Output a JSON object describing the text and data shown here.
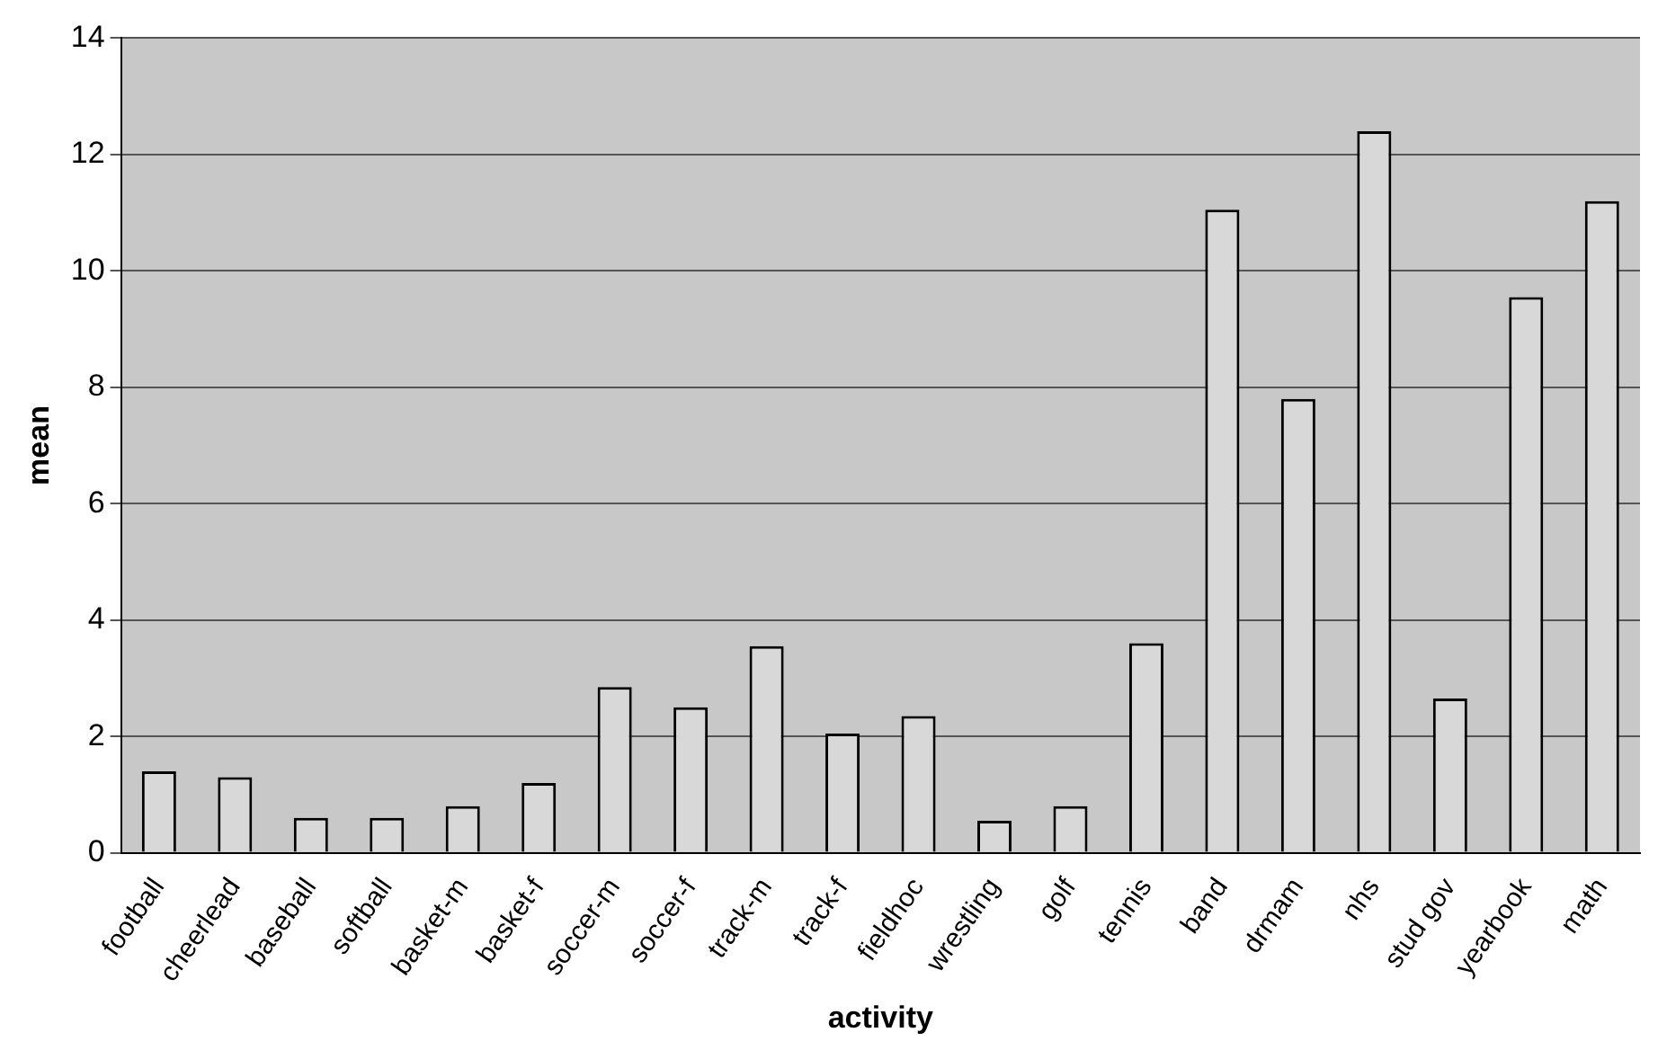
{
  "chart_data": {
    "type": "bar",
    "xlabel": "activity",
    "ylabel": "mean",
    "categories": [
      "football",
      "cheerlead",
      "baseball",
      "softball",
      "basket-m",
      "basket-f",
      "soccer-m",
      "soccer-f",
      "track-m",
      "track-f",
      "fieldhoc",
      "wrestling",
      "golf",
      "tennis",
      "band",
      "drmam",
      "nhs",
      "stud gov",
      "yearbook",
      "math"
    ],
    "values": [
      1.4,
      1.3,
      0.6,
      0.6,
      0.8,
      1.2,
      2.85,
      2.5,
      3.55,
      2.05,
      2.35,
      0.55,
      0.8,
      3.6,
      11.05,
      7.8,
      12.4,
      2.65,
      9.55,
      11.2
    ],
    "color": "#d8d8d8",
    "ylim": [
      0,
      14
    ],
    "yticks": [
      0,
      2,
      4,
      6,
      8,
      10,
      12,
      14
    ],
    "grid": "y",
    "legend": false
  }
}
